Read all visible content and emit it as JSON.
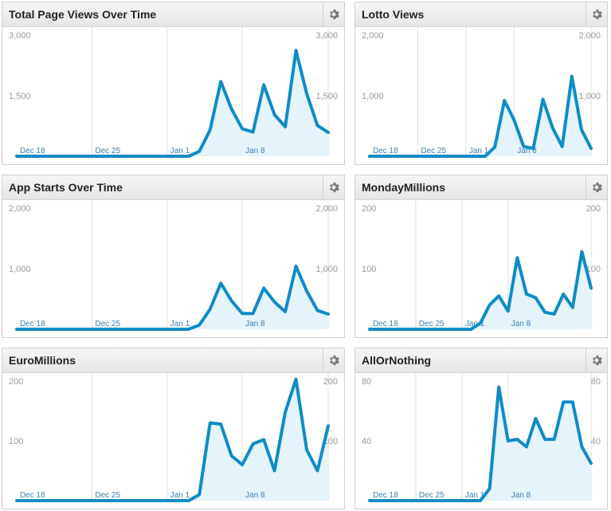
{
  "theme": {
    "line": "#0f8bc7",
    "fill": "#e5f3fb",
    "grid": "#e0e0e0",
    "tick": "#9a9a9a",
    "xtick": "#3a7fb6"
  },
  "gear_icon": "gear-icon",
  "chart_data": [
    {
      "type": "area",
      "title": "Total Page Views Over Time",
      "ylim": [
        0,
        3000
      ],
      "yticks": [
        "1,500",
        "3,000"
      ],
      "ytick_values": [
        1500,
        3000
      ],
      "xticks": [
        "Dec 18",
        "Dec 25",
        "Jan 1",
        "Jan 8"
      ],
      "xtick_index": [
        0,
        7,
        14,
        21
      ],
      "values": [
        0,
        0,
        0,
        0,
        0,
        0,
        0,
        0,
        0,
        0,
        0,
        0,
        0,
        0,
        0,
        0,
        0,
        120,
        650,
        1850,
        1170,
        680,
        600,
        1770,
        1030,
        730,
        2620,
        1550,
        760,
        590
      ]
    },
    {
      "type": "area",
      "title": "Lotto Views",
      "ylim": [
        0,
        2000
      ],
      "yticks": [
        "1,000",
        "2,000"
      ],
      "ytick_values": [
        1000,
        2000
      ],
      "xticks": [
        "Dec 18",
        "Dec 25",
        "Jan 1",
        "Jan 8"
      ],
      "xtick_index": [
        0,
        5,
        10,
        15
      ],
      "values": [
        0,
        0,
        0,
        0,
        0,
        0,
        0,
        0,
        0,
        0,
        0,
        0,
        0,
        150,
        920,
        600,
        160,
        130,
        940,
        470,
        160,
        1320,
        440,
        130
      ]
    },
    {
      "type": "area",
      "title": "App Starts Over Time",
      "ylim": [
        0,
        2000
      ],
      "yticks": [
        "1,000",
        "2,000"
      ],
      "ytick_values": [
        1000,
        2000
      ],
      "xticks": [
        "Dec 18",
        "Dec 25",
        "Jan 1",
        "Jan 8"
      ],
      "xtick_index": [
        0,
        7,
        14,
        21
      ],
      "values": [
        0,
        0,
        0,
        0,
        0,
        0,
        0,
        0,
        0,
        0,
        0,
        0,
        0,
        0,
        0,
        0,
        0,
        70,
        330,
        760,
        470,
        260,
        260,
        680,
        450,
        290,
        1040,
        630,
        310,
        250
      ]
    },
    {
      "type": "area",
      "title": "MondayMillions",
      "ylim": [
        0,
        200
      ],
      "yticks": [
        "100",
        "200"
      ],
      "ytick_values": [
        100,
        200
      ],
      "xticks": [
        "Dec 18",
        "Dec 25",
        "Jan 1",
        "Jan 8"
      ],
      "xtick_index": [
        0,
        5,
        10,
        15
      ],
      "values": [
        0,
        0,
        0,
        0,
        0,
        0,
        0,
        0,
        0,
        0,
        0,
        0,
        10,
        40,
        55,
        30,
        118,
        58,
        52,
        28,
        25,
        58,
        36,
        128,
        68
      ]
    },
    {
      "type": "area",
      "title": "EuroMillions",
      "ylim": [
        0,
        200
      ],
      "yticks": [
        "100",
        "200"
      ],
      "ytick_values": [
        100,
        200
      ],
      "xticks": [
        "Dec 18",
        "Dec 25",
        "Jan 1",
        "Jan 8"
      ],
      "xtick_index": [
        0,
        7,
        14,
        21
      ],
      "values": [
        0,
        0,
        0,
        0,
        0,
        0,
        0,
        0,
        0,
        0,
        0,
        0,
        0,
        0,
        0,
        0,
        0,
        10,
        130,
        128,
        75,
        60,
        95,
        102,
        50,
        148,
        203,
        85,
        50,
        125
      ]
    },
    {
      "type": "area",
      "title": "AllOrNothing",
      "ylim": [
        0,
        80
      ],
      "yticks": [
        "40",
        "80"
      ],
      "ytick_values": [
        40,
        80
      ],
      "xticks": [
        "Dec 18",
        "Dec 25",
        "Jan 1",
        "Jan 8"
      ],
      "xtick_index": [
        0,
        5,
        10,
        15
      ],
      "values": [
        0,
        0,
        0,
        0,
        0,
        0,
        0,
        0,
        0,
        0,
        0,
        0,
        0,
        8,
        76,
        40,
        41,
        36,
        55,
        41,
        41,
        66,
        66,
        36,
        25
      ]
    }
  ]
}
